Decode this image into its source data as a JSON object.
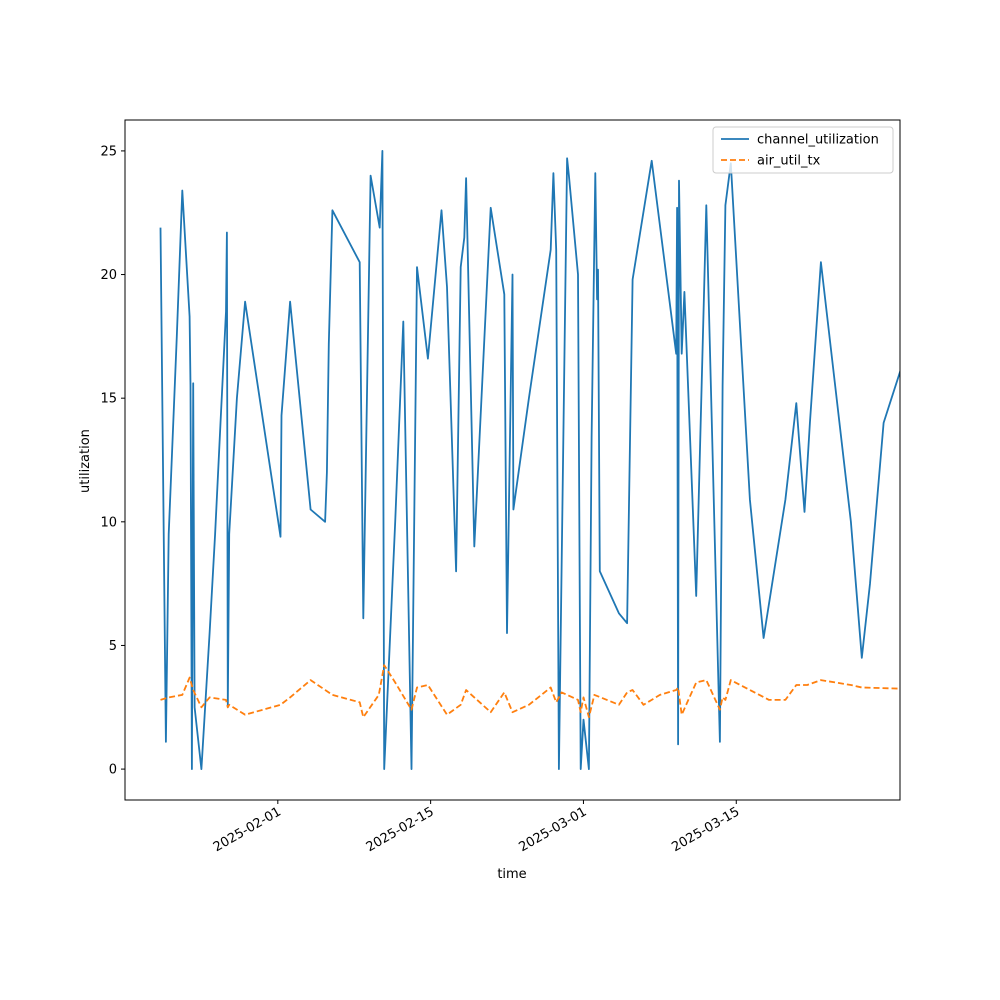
{
  "chart_data": {
    "type": "line",
    "xlabel": "time",
    "ylabel": "utilization",
    "xlim": [
      "2025-01-18",
      "2025-03-30"
    ],
    "ylim": [
      -1.25,
      26.25
    ],
    "x_ticks": [
      "2025-02-01",
      "2025-02-15",
      "2025-03-01",
      "2025-03-15"
    ],
    "y_ticks": [
      0,
      5,
      10,
      15,
      20,
      25
    ],
    "grid": false,
    "legend_position": "upper right",
    "series": [
      {
        "name": "channel_utilization",
        "color": "#1f77b4",
        "style": "solid",
        "points": [
          [
            "2025-01-21 06:00",
            21.9
          ],
          [
            "2025-01-21 18:00",
            1.1
          ],
          [
            "2025-01-22 00:00",
            9.5
          ],
          [
            "2025-01-22 18:00",
            17.5
          ],
          [
            "2025-01-23 06:00",
            23.4
          ],
          [
            "2025-01-23 22:00",
            18.3
          ],
          [
            "2025-01-24 00:00",
            15.5
          ],
          [
            "2025-01-24 03:00",
            0.0
          ],
          [
            "2025-01-24 06:00",
            15.6
          ],
          [
            "2025-01-24 09:00",
            2.5
          ],
          [
            "2025-01-25 00:00",
            0.0
          ],
          [
            "2025-01-25 18:00",
            5.5
          ],
          [
            "2025-01-26 06:00",
            9.5
          ],
          [
            "2025-01-26 18:00",
            14.0
          ],
          [
            "2025-01-27 06:00",
            18.5
          ],
          [
            "2025-01-27 08:00",
            21.7
          ],
          [
            "2025-01-27 10:00",
            2.5
          ],
          [
            "2025-01-27 13:00",
            9.5
          ],
          [
            "2025-01-28 06:00",
            15.0
          ],
          [
            "2025-01-29 00:00",
            18.9
          ],
          [
            "2025-02-01 06:00",
            9.4
          ],
          [
            "2025-02-01 08:00",
            14.3
          ],
          [
            "2025-02-02 03:00",
            18.9
          ],
          [
            "2025-02-04 00:00",
            10.5
          ],
          [
            "2025-02-05 08:00",
            10.0
          ],
          [
            "2025-02-05 12:00",
            12.0
          ],
          [
            "2025-02-05 16:00",
            17.2
          ],
          [
            "2025-02-06 00:00",
            22.6
          ],
          [
            "2025-02-08 12:00",
            20.5
          ],
          [
            "2025-02-08 20:00",
            6.1
          ],
          [
            "2025-02-09 12:00",
            24.0
          ],
          [
            "2025-02-10 08:00",
            21.9
          ],
          [
            "2025-02-10 14:00",
            25.0
          ],
          [
            "2025-02-10 18:00",
            0.0
          ],
          [
            "2025-02-11 18:00",
            10.0
          ],
          [
            "2025-02-12 12:00",
            18.1
          ],
          [
            "2025-02-13 06:00",
            0.0
          ],
          [
            "2025-02-13 18:00",
            20.3
          ],
          [
            "2025-02-14 18:00",
            16.6
          ],
          [
            "2025-02-16 00:00",
            22.6
          ],
          [
            "2025-02-16 12:00",
            19.5
          ],
          [
            "2025-02-17 08:00",
            8.0
          ],
          [
            "2025-02-17 18:00",
            20.3
          ],
          [
            "2025-02-18 02:00",
            21.5
          ],
          [
            "2025-02-18 06:00",
            23.9
          ],
          [
            "2025-02-19 00:00",
            9.0
          ],
          [
            "2025-02-20 12:00",
            22.7
          ],
          [
            "2025-02-21 18:00",
            19.2
          ],
          [
            "2025-02-22 00:00",
            5.5
          ],
          [
            "2025-02-22 12:00",
            20.0
          ],
          [
            "2025-02-22 14:00",
            10.5
          ],
          [
            "2025-02-24 00:00",
            15.0
          ],
          [
            "2025-02-26 00:00",
            21.0
          ],
          [
            "2025-02-26 06:00",
            24.1
          ],
          [
            "2025-02-26 12:00",
            21.0
          ],
          [
            "2025-02-26 18:00",
            0.0
          ],
          [
            "2025-02-27 12:00",
            24.7
          ],
          [
            "2025-02-27 16:00",
            24.0
          ],
          [
            "2025-02-28 12:00",
            20.0
          ],
          [
            "2025-02-28 18:00",
            0.0
          ],
          [
            "2025-02-29 00:00",
            2.0
          ],
          [
            "2025-02-29 12:00",
            0.0
          ],
          [
            "2025-02-29 18:00",
            13.4
          ],
          [
            "2025-03-02 00:00",
            21.5
          ],
          [
            "2025-03-02 02:00",
            24.1
          ],
          [
            "2025-03-02 06:00",
            19.0
          ],
          [
            "2025-03-02 08:00",
            20.2
          ],
          [
            "2025-03-02 12:00",
            8.0
          ],
          [
            "2025-03-04 06:00",
            6.3
          ],
          [
            "2025-03-05 00:00",
            5.9
          ],
          [
            "2025-03-05 12:00",
            19.8
          ],
          [
            "2025-03-07 06:00",
            24.6
          ],
          [
            "2025-03-09 12:00",
            16.8
          ],
          [
            "2025-03-09 14:00",
            22.7
          ],
          [
            "2025-03-09 16:00",
            1.0
          ],
          [
            "2025-03-09 18:00",
            23.8
          ],
          [
            "2025-03-10 00:00",
            16.8
          ],
          [
            "2025-03-10 06:00",
            19.3
          ],
          [
            "2025-03-11 08:00",
            7.0
          ],
          [
            "2025-03-12 06:00",
            22.8
          ],
          [
            "2025-03-13 12:00",
            1.1
          ],
          [
            "2025-03-13 18:00",
            15.5
          ],
          [
            "2025-03-14 00:00",
            22.8
          ],
          [
            "2025-03-14 12:00",
            24.5
          ],
          [
            "2025-03-16 06:00",
            10.9
          ],
          [
            "2025-03-17 12:00",
            5.3
          ],
          [
            "2025-03-19 12:00",
            10.9
          ],
          [
            "2025-03-20 12:00",
            14.8
          ],
          [
            "2025-03-21 06:00",
            10.4
          ],
          [
            "2025-03-21 18:00",
            14.0
          ],
          [
            "2025-03-22 18:00",
            20.5
          ],
          [
            "2025-03-25 12:00",
            10.0
          ],
          [
            "2025-03-26 12:00",
            4.5
          ],
          [
            "2025-03-27 06:00",
            7.5
          ],
          [
            "2025-03-28 12:00",
            14.0
          ],
          [
            "2025-04-03 06:00",
            21.9
          ]
        ]
      },
      {
        "name": "air_util_tx",
        "color": "#ff7f0e",
        "style": "dashed",
        "points": [
          [
            "2025-01-21 06:00",
            2.8
          ],
          [
            "2025-01-22 00:00",
            2.9
          ],
          [
            "2025-01-23 06:00",
            3.0
          ],
          [
            "2025-01-23 22:00",
            3.7
          ],
          [
            "2025-01-24 06:00",
            3.2
          ],
          [
            "2025-01-25 00:00",
            2.5
          ],
          [
            "2025-01-25 18:00",
            2.9
          ],
          [
            "2025-01-27 06:00",
            2.8
          ],
          [
            "2025-01-27 10:00",
            2.5
          ],
          [
            "2025-01-27 13:00",
            2.6
          ],
          [
            "2025-01-29 00:00",
            2.2
          ],
          [
            "2025-02-01 06:00",
            2.6
          ],
          [
            "2025-02-02 03:00",
            2.9
          ],
          [
            "2025-02-04 00:00",
            3.6
          ],
          [
            "2025-02-06 00:00",
            3.0
          ],
          [
            "2025-02-08 12:00",
            2.7
          ],
          [
            "2025-02-08 20:00",
            2.1
          ],
          [
            "2025-02-10 06:00",
            3.0
          ],
          [
            "2025-02-10 18:00",
            4.2
          ],
          [
            "2025-02-11 18:00",
            3.5
          ],
          [
            "2025-02-13 06:00",
            2.4
          ],
          [
            "2025-02-13 18:00",
            3.3
          ],
          [
            "2025-02-14 18:00",
            3.4
          ],
          [
            "2025-02-16 12:00",
            2.2
          ],
          [
            "2025-02-17 18:00",
            2.6
          ],
          [
            "2025-02-18 06:00",
            3.2
          ],
          [
            "2025-02-19 00:00",
            2.9
          ],
          [
            "2025-02-20 12:00",
            2.3
          ],
          [
            "2025-02-21 18:00",
            3.1
          ],
          [
            "2025-02-22 12:00",
            2.3
          ],
          [
            "2025-02-24 00:00",
            2.6
          ],
          [
            "2025-02-26 00:00",
            3.3
          ],
          [
            "2025-02-26 12:00",
            2.7
          ],
          [
            "2025-02-27 00:00",
            3.1
          ],
          [
            "2025-02-28 12:00",
            2.8
          ],
          [
            "2025-02-28 18:00",
            2.3
          ],
          [
            "2025-02-29 00:00",
            2.9
          ],
          [
            "2025-02-29 12:00",
            2.1
          ],
          [
            "2025-03-02 00:00",
            3.0
          ],
          [
            "2025-03-04 06:00",
            2.6
          ],
          [
            "2025-03-05 00:00",
            3.1
          ],
          [
            "2025-03-05 12:00",
            3.2
          ],
          [
            "2025-03-06 12:00",
            2.6
          ],
          [
            "2025-03-08 00:00",
            3.0
          ],
          [
            "2025-03-09 12:00",
            3.2
          ],
          [
            "2025-03-09 16:00",
            3.3
          ],
          [
            "2025-03-10 00:00",
            2.2
          ],
          [
            "2025-03-11 08:00",
            3.5
          ],
          [
            "2025-03-12 06:00",
            3.6
          ],
          [
            "2025-03-13 12:00",
            2.4
          ],
          [
            "2025-03-13 18:00",
            2.9
          ],
          [
            "2025-03-14 00:00",
            2.8
          ],
          [
            "2025-03-14 12:00",
            3.6
          ],
          [
            "2025-03-16 06:00",
            3.2
          ],
          [
            "2025-03-18 00:00",
            2.8
          ],
          [
            "2025-03-19 12:00",
            2.8
          ],
          [
            "2025-03-20 12:00",
            3.4
          ],
          [
            "2025-03-21 12:00",
            3.4
          ],
          [
            "2025-03-22 18:00",
            3.6
          ],
          [
            "2025-03-25 12:00",
            3.4
          ],
          [
            "2025-03-26 12:00",
            3.3
          ],
          [
            "2025-04-03 06:00",
            3.2
          ]
        ]
      }
    ]
  }
}
